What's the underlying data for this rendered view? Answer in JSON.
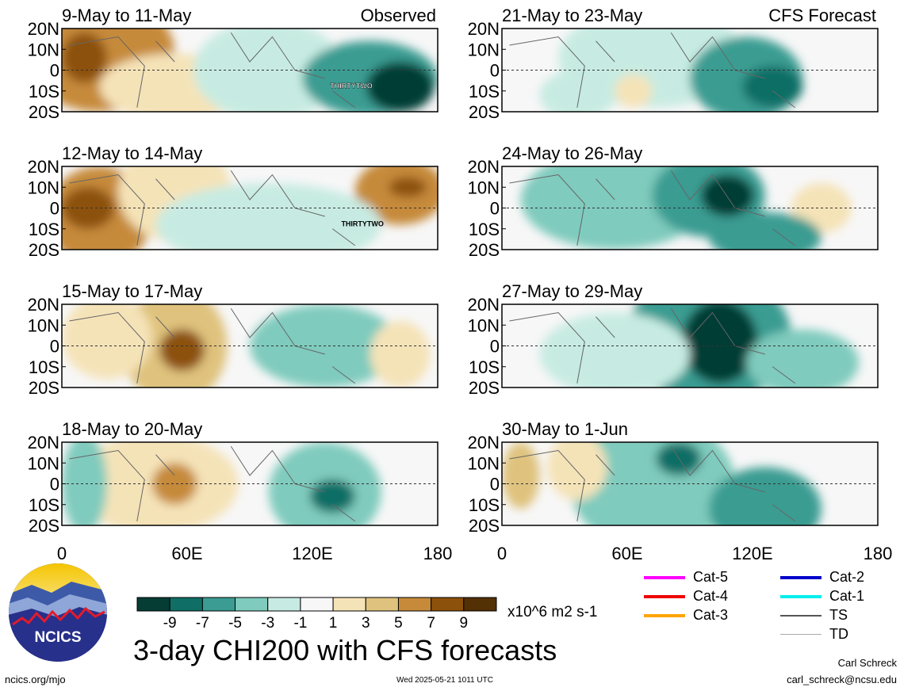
{
  "chart_data": {
    "type": "heatmap",
    "title": "3-day CHI200 with CFS forecasts",
    "units": "x10^6 m2 s-1",
    "columns": [
      {
        "label": "Observed",
        "panels": [
          "9-May to 11-May",
          "12-May to 14-May",
          "15-May to 17-May",
          "18-May to 20-May"
        ]
      },
      {
        "label": "CFS Forecast",
        "panels": [
          "21-May to 23-May",
          "24-May to 26-May",
          "27-May to 29-May",
          "30-May to 1-Jun"
        ]
      }
    ],
    "y_ticks": [
      "20N",
      "10N",
      "0",
      "10S",
      "20S"
    ],
    "x_ticks": [
      "0",
      "60E",
      "120E",
      "180"
    ],
    "colorbar": {
      "ticks": [
        "-9",
        "-7",
        "-5",
        "-3",
        "-1",
        "1",
        "3",
        "5",
        "7",
        "9"
      ],
      "colors": [
        "#053d35",
        "#0f6e66",
        "#3a9c92",
        "#7fcbbd",
        "#c7ebe2",
        "#f7f7f7",
        "#f5e3b8",
        "#dfc27d",
        "#c68a3a",
        "#8c510a",
        "#543005"
      ]
    },
    "storm_label": "THIRTYTWO",
    "track_legend": [
      {
        "label": "Cat-5",
        "color": "#ff00ff"
      },
      {
        "label": "Cat-4",
        "color": "#ee0000"
      },
      {
        "label": "Cat-3",
        "color": "#ffa500"
      },
      {
        "label": "Cat-2",
        "color": "#0000cc"
      },
      {
        "label": "Cat-1",
        "color": "#00eeee"
      },
      {
        "label": "TS",
        "color": "#555555"
      },
      {
        "label": "TD",
        "color": "#aaaaaa"
      }
    ]
  },
  "logo_text": "NCICS",
  "footer": {
    "url": "ncics.org/mjo",
    "timestamp": "Wed 2025-05-21 1011 UTC",
    "author": "Carl Schreck",
    "email": "carl_schreck@ncsu.edu"
  }
}
